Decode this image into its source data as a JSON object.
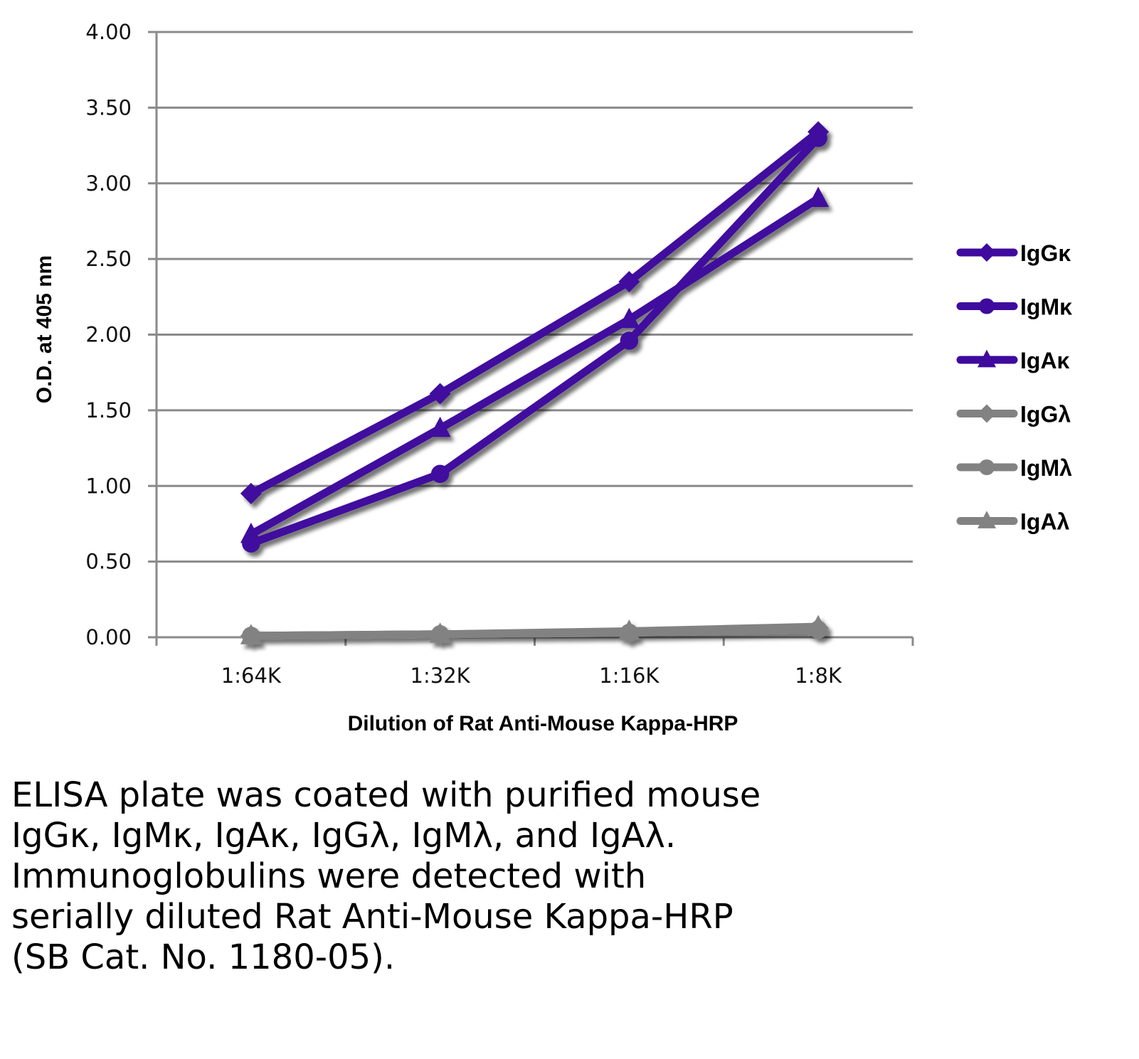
{
  "chart_data": {
    "type": "line",
    "title": "",
    "xlabel": "Dilution of Rat Anti-Mouse Kappa-HRP",
    "ylabel": "O.D. at 405 nm",
    "categories": [
      "1:64K",
      "1:32K",
      "1:16K",
      "1:8K"
    ],
    "ylim": [
      0,
      4
    ],
    "yticks": [
      "0.00",
      "0.50",
      "1.00",
      "1.50",
      "2.00",
      "2.50",
      "3.00",
      "3.50",
      "4.00"
    ],
    "grid": true,
    "legend_position": "right",
    "series": [
      {
        "name": "IgGκ",
        "marker": "diamond",
        "color": "#3f0a9e",
        "values": [
          0.95,
          1.61,
          2.35,
          3.34
        ]
      },
      {
        "name": "IgMκ",
        "marker": "circle",
        "color": "#3f0a9e",
        "values": [
          0.62,
          1.08,
          1.96,
          3.3
        ]
      },
      {
        "name": "IgAκ",
        "marker": "triangle",
        "color": "#3f0a9e",
        "values": [
          0.68,
          1.38,
          2.1,
          2.9
        ]
      },
      {
        "name": "IgGλ",
        "marker": "diamond",
        "color": "#828282",
        "values": [
          0.01,
          0.02,
          0.03,
          0.06
        ]
      },
      {
        "name": "IgMλ",
        "marker": "circle",
        "color": "#828282",
        "values": [
          0.01,
          0.02,
          0.03,
          0.05
        ]
      },
      {
        "name": "IgAλ",
        "marker": "triangle",
        "color": "#828282",
        "values": [
          0.01,
          0.02,
          0.04,
          0.07
        ]
      }
    ]
  },
  "caption": {
    "lines": [
      "ELISA plate was coated with purified mouse",
      "IgGκ, IgMκ, IgAκ, IgGλ, IgMλ, and IgAλ.",
      "Immunoglobulins were detected with",
      "serially diluted Rat Anti-Mouse Kappa-HRP",
      "(SB Cat. No. 1180-05)."
    ]
  }
}
